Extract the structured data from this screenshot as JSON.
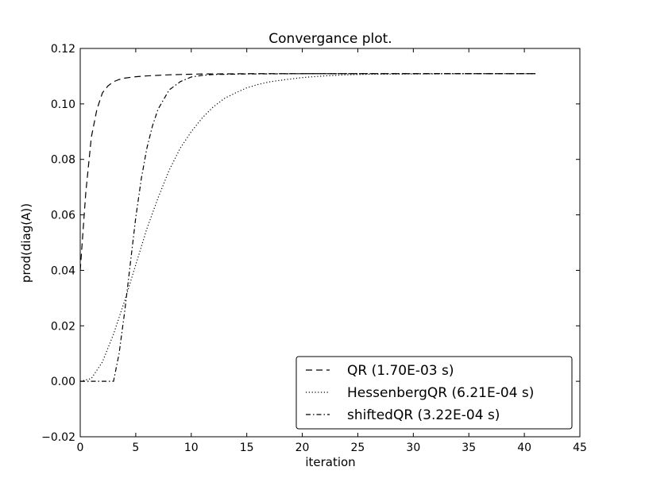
{
  "chart_data": {
    "type": "line",
    "title": "Convergance plot.",
    "xlabel": "iteration",
    "ylabel": "prod(diag(A))",
    "xlim": [
      0,
      45
    ],
    "ylim": [
      -0.02,
      0.12
    ],
    "xticks": [
      0,
      5,
      10,
      15,
      20,
      25,
      30,
      35,
      40,
      45
    ],
    "xtick_labels": [
      "0",
      "5",
      "10",
      "15",
      "20",
      "25",
      "30",
      "35",
      "40",
      "45"
    ],
    "yticks": [
      -0.02,
      0.0,
      0.02,
      0.04,
      0.06,
      0.08,
      0.1,
      0.12
    ],
    "ytick_labels": [
      "−0.02",
      "0.00",
      "0.02",
      "0.04",
      "0.06",
      "0.08",
      "0.10",
      "0.12"
    ],
    "grid": false,
    "legend_position": "bottom-right",
    "series": [
      {
        "name": "QR (1.70E-03 s)",
        "style": "dashed",
        "color": "#000000",
        "x": [
          0,
          0.5,
          1,
          1.5,
          2,
          2.5,
          3,
          3.5,
          4,
          5,
          6,
          7,
          8,
          9,
          10,
          11,
          12,
          15,
          20,
          25,
          30,
          35,
          41
        ],
        "y": [
          0.04,
          0.068,
          0.088,
          0.098,
          0.104,
          0.1065,
          0.108,
          0.1088,
          0.1093,
          0.1098,
          0.1101,
          0.1103,
          0.1105,
          0.1106,
          0.1107,
          0.1108,
          0.1108,
          0.1109,
          0.1109,
          0.1109,
          0.1109,
          0.1109,
          0.1109
        ]
      },
      {
        "name": "HessenbergQR (6.21E-04 s)",
        "style": "dotted",
        "color": "#000000",
        "x": [
          0,
          1,
          2,
          3,
          4,
          5,
          6,
          7,
          8,
          9,
          10,
          11,
          12,
          13,
          14,
          15,
          16,
          17,
          18,
          19,
          20,
          22,
          24,
          26,
          30,
          35,
          41
        ],
        "y": [
          0.0,
          0.001,
          0.007,
          0.017,
          0.029,
          0.042,
          0.055,
          0.066,
          0.076,
          0.084,
          0.09,
          0.095,
          0.099,
          0.102,
          0.104,
          0.1058,
          0.107,
          0.1079,
          0.1085,
          0.109,
          0.1095,
          0.1101,
          0.1105,
          0.1107,
          0.1108,
          0.1109,
          0.1109
        ]
      },
      {
        "name": "shiftedQR (3.22E-04 s)",
        "style": "dashdot",
        "color": "#000000",
        "x": [
          0,
          1,
          2,
          3,
          3.5,
          4,
          4.5,
          5,
          5.5,
          6,
          6.5,
          7,
          7.5,
          8,
          9,
          10,
          11,
          12,
          15,
          20,
          25,
          30,
          35,
          41
        ],
        "y": [
          0.0,
          0.0,
          0.0,
          0.0,
          0.01,
          0.025,
          0.042,
          0.059,
          0.073,
          0.084,
          0.092,
          0.098,
          0.1015,
          0.105,
          0.108,
          0.1097,
          0.1103,
          0.1106,
          0.1108,
          0.1109,
          0.1109,
          0.1109,
          0.1109,
          0.1109
        ]
      }
    ]
  }
}
